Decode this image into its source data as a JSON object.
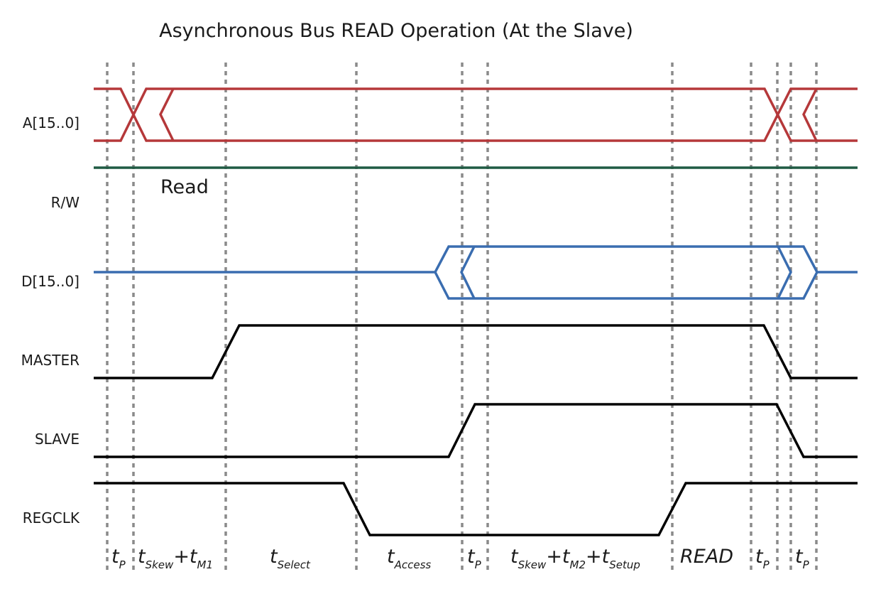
{
  "title": "Asynchronous Bus READ Operation (At the Slave)",
  "signals": {
    "address": "A[15..0]",
    "rw": "R/W",
    "data": "D[15..0]",
    "master": "MASTER",
    "slave": "SLAVE",
    "regclk": "REGCLK"
  },
  "rw_state": "Read",
  "timing": {
    "tp1": {
      "t": "t",
      "sub": "P"
    },
    "skew_m1": {
      "t1": "t",
      "sub1": "Skew",
      "plus1": "+t",
      "sub2": "M1"
    },
    "select": {
      "t": "t",
      "sub": "Select"
    },
    "access": {
      "t": "t",
      "sub": "Access"
    },
    "tp2": {
      "t": "t",
      "sub": "P"
    },
    "skew_m2_setup": {
      "t1": "t",
      "sub1": "Skew",
      "plus1": "+t",
      "sub2": "M2",
      "plus2": "+t",
      "sub3": "Setup"
    },
    "read": "READ",
    "tp3": {
      "t": "t",
      "sub": "P"
    },
    "tp4": {
      "t": "t",
      "sub": "P"
    }
  },
  "colors": {
    "address": "#b5383a",
    "rw": "#1f5a43",
    "data": "#3a6db0",
    "control": "#000000",
    "guide": "#8a8a8a"
  }
}
